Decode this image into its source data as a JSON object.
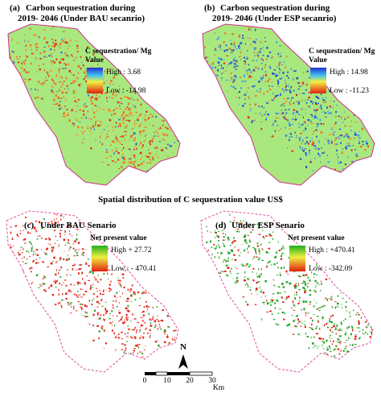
{
  "center_title": "Spatial distribution of C sequestration value US$",
  "panels": [
    {
      "label": "(a)",
      "title_line1": "Carbon sequestration during",
      "title_line2": "2019- 2046 (Under BAU secanrio)",
      "legend_title": "C sequestration/ Mg",
      "legend_subtitle": "Value",
      "high": "High : 3.68",
      "low": "Low : -14.98"
    },
    {
      "label": "(b)",
      "title_line1": "Carbon sequestration during",
      "title_line2": "2019- 2046 (Under ESP secanrio)",
      "legend_title": "C sequestration/ Mg",
      "legend_subtitle": "Value",
      "high": "High : 14.98",
      "low": "Low : -11.23"
    },
    {
      "label": "(c)",
      "title_line1": "Under BAU Senario",
      "legend_title": "Net present value",
      "high": "High + 27.72",
      "low": "Low : - 470.41"
    },
    {
      "label": "(d)",
      "title_line1": "Under ESP Senario",
      "legend_title": "Net present value",
      "high": "High : +470.41",
      "low": "Low : -342.09"
    }
  ],
  "north": "N",
  "scale_ticks": [
    "0",
    "10",
    "20",
    "30"
  ],
  "scale_unit": "Km"
}
